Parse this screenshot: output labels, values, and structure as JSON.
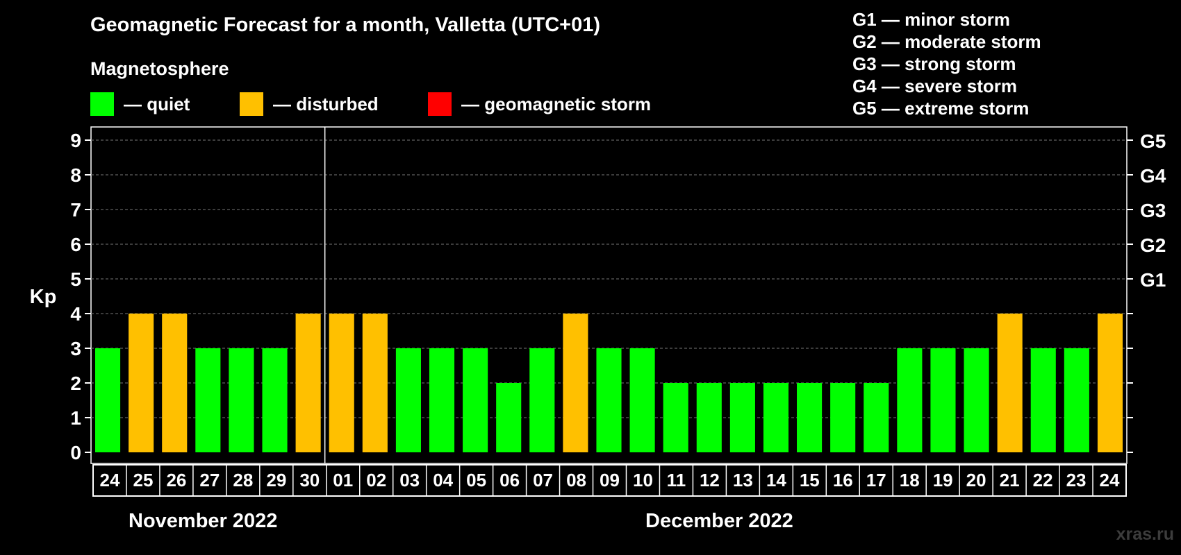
{
  "title": "Geomagnetic Forecast for a month, Valletta (UTC+01)",
  "legend": {
    "title": "Magnetosphere",
    "items": [
      {
        "label": "— quiet",
        "color": "#00ff00"
      },
      {
        "label": "— disturbed",
        "color": "#ffc000"
      },
      {
        "label": "— geomagnetic storm",
        "color": "#ff0000"
      }
    ]
  },
  "storm_legend": [
    "G1 — minor storm",
    "G2 — moderate storm",
    "G3 — strong storm",
    "G4 — severe storm",
    "G5 — extreme storm"
  ],
  "months": [
    "November 2022",
    "December 2022"
  ],
  "watermark": "xras.ru",
  "chart_data": {
    "type": "bar",
    "ylabel": "Kp",
    "ylim": [
      0,
      9
    ],
    "yticks": [
      0,
      1,
      2,
      3,
      4,
      5,
      6,
      7,
      8,
      9
    ],
    "right_axis_labels": [
      {
        "kp": 5,
        "label": "G1"
      },
      {
        "kp": 6,
        "label": "G2"
      },
      {
        "kp": 7,
        "label": "G3"
      },
      {
        "kp": 8,
        "label": "G4"
      },
      {
        "kp": 9,
        "label": "G5"
      }
    ],
    "categories": [
      "24",
      "25",
      "26",
      "27",
      "28",
      "29",
      "30",
      "01",
      "02",
      "03",
      "04",
      "05",
      "06",
      "07",
      "08",
      "09",
      "10",
      "11",
      "12",
      "13",
      "14",
      "15",
      "16",
      "17",
      "18",
      "19",
      "20",
      "21",
      "22",
      "23",
      "24"
    ],
    "values": [
      3,
      4,
      4,
      3,
      3,
      3,
      4,
      4,
      4,
      3,
      3,
      3,
      2,
      3,
      4,
      3,
      3,
      2,
      2,
      2,
      2,
      2,
      2,
      2,
      3,
      3,
      3,
      4,
      3,
      3,
      4
    ],
    "status": [
      "quiet",
      "disturbed",
      "disturbed",
      "quiet",
      "quiet",
      "quiet",
      "disturbed",
      "disturbed",
      "disturbed",
      "quiet",
      "quiet",
      "quiet",
      "quiet",
      "quiet",
      "disturbed",
      "quiet",
      "quiet",
      "quiet",
      "quiet",
      "quiet",
      "quiet",
      "quiet",
      "quiet",
      "quiet",
      "quiet",
      "quiet",
      "quiet",
      "disturbed",
      "quiet",
      "quiet",
      "disturbed"
    ],
    "status_colors": {
      "quiet": "#00ff00",
      "disturbed": "#ffc000",
      "storm": "#ff0000"
    },
    "month_split_after_index": 6,
    "grid": true
  }
}
